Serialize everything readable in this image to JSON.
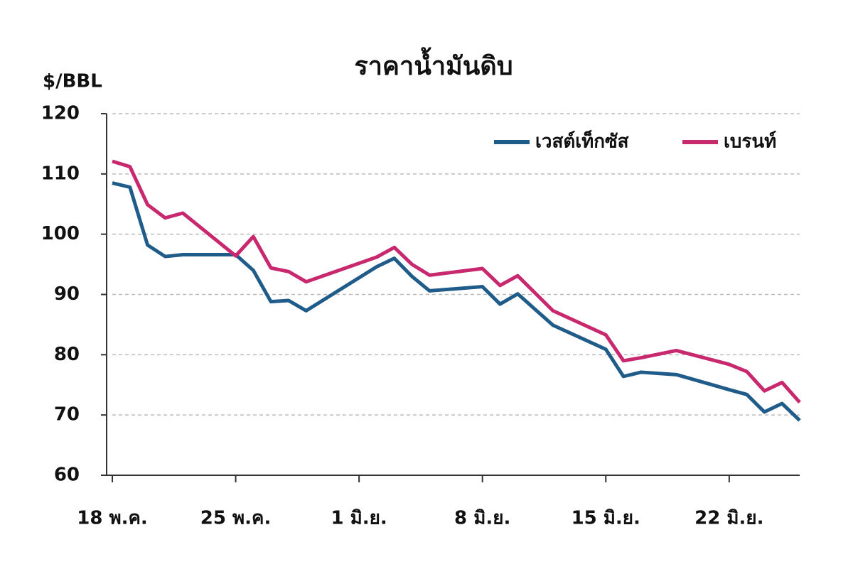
{
  "chart_data": {
    "type": "line",
    "title": "ราคาน้ำมันดิบ",
    "y_label": "$/BBL",
    "x": [
      0,
      1,
      2,
      3,
      4,
      7,
      8,
      9,
      10,
      11,
      15,
      16,
      17,
      18,
      21,
      22,
      23,
      25,
      28,
      29,
      30,
      32,
      35,
      36,
      37,
      38,
      39
    ],
    "series": [
      {
        "name": "เวสต์เท็กซัส",
        "color": "#1f5c8a",
        "values": [
          108.5,
          107.8,
          98.2,
          96.3,
          96.6,
          96.6,
          94.0,
          88.8,
          89.0,
          87.3,
          94.6,
          96.0,
          93.0,
          90.6,
          91.3,
          88.4,
          90.1,
          84.9,
          80.9,
          76.4,
          77.1,
          76.7,
          74.2,
          73.4,
          70.5,
          71.9,
          69.1
        ]
      },
      {
        "name": "เบรนท์",
        "color": "#c8286e",
        "values": [
          112.1,
          111.2,
          104.9,
          102.7,
          103.5,
          96.4,
          99.6,
          94.4,
          93.8,
          92.1,
          96.2,
          97.8,
          95.0,
          93.2,
          94.3,
          91.5,
          93.1,
          87.3,
          83.3,
          79.0,
          79.5,
          80.7,
          78.4,
          77.2,
          74.0,
          75.4,
          72.1
        ]
      }
    ],
    "xlim": [
      0,
      39
    ],
    "xticks": [
      {
        "value": 0,
        "label": "18 พ.ค."
      },
      {
        "value": 7,
        "label": "25 พ.ค."
      },
      {
        "value": 14,
        "label": "1 มิ.ย."
      },
      {
        "value": 21,
        "label": "8 มิ.ย."
      },
      {
        "value": 28,
        "label": "15 มิ.ย."
      },
      {
        "value": 35,
        "label": "22 มิ.ย."
      }
    ],
    "ylim": [
      60,
      120
    ],
    "yticks": [
      60,
      70,
      80,
      90,
      100,
      110,
      120
    ],
    "grid": true,
    "legend": "upper right"
  }
}
